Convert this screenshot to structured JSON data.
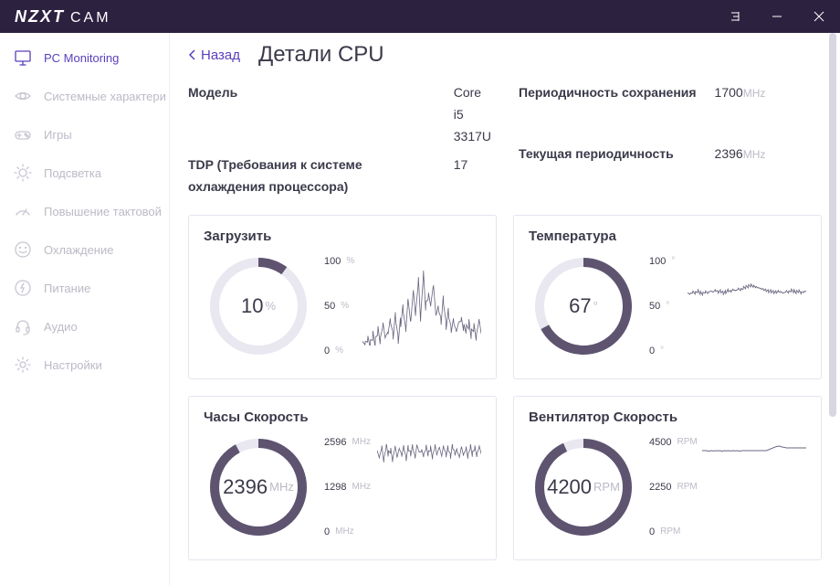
{
  "brand": {
    "main": "NZXT",
    "sub": "CAM"
  },
  "sidebar": {
    "items": [
      {
        "label": "PC Monitoring",
        "icon": "monitor",
        "active": true
      },
      {
        "label": "Системные характери",
        "icon": "eye",
        "active": false
      },
      {
        "label": "Игры",
        "icon": "gamepad",
        "active": false
      },
      {
        "label": "Подсветка",
        "icon": "sun",
        "active": false
      },
      {
        "label": "Повышение тактовой",
        "icon": "speedometer",
        "active": false
      },
      {
        "label": "Охлаждение",
        "icon": "smile",
        "active": false
      },
      {
        "label": "Питание",
        "icon": "bolt",
        "active": false
      },
      {
        "label": "Аудио",
        "icon": "headset",
        "active": false
      },
      {
        "label": "Настройки",
        "icon": "gear",
        "active": false
      }
    ]
  },
  "header": {
    "back": "Назад",
    "title": "Детали CPU"
  },
  "info": {
    "left": [
      {
        "label": "Модель",
        "value": "Core i5 3317U",
        "unit": ""
      },
      {
        "label": "TDP (Требования к системе охлаждения процессора)",
        "value": "17",
        "unit": ""
      }
    ],
    "right": [
      {
        "label": "Периодичность сохранения",
        "value": "1700",
        "unit": "MHz"
      },
      {
        "label": "Текущая периодичность",
        "value": "2396",
        "unit": "MHz"
      }
    ]
  },
  "colors": {
    "gauge_track": "#e9e7f0",
    "gauge_fill": "#5e5470",
    "spark": "#6b6580",
    "card_border": "#e6e4ee",
    "accent": "#5a3fbb"
  },
  "cards": [
    {
      "title": "Загрузить",
      "value": "10",
      "unit": "%",
      "pct": 10,
      "ticks": [
        "100",
        "50",
        "0"
      ],
      "tick_unit": "%",
      "spark": {
        "spark_off": 42,
        "ymin": 0,
        "ymax": 100,
        "series": [
          5,
          3,
          8,
          2,
          12,
          4,
          18,
          6,
          25,
          10,
          15,
          30,
          12,
          35,
          8,
          28,
          45,
          20,
          55,
          30,
          65,
          40,
          78,
          35,
          85,
          48,
          60,
          50,
          72,
          38,
          45,
          30,
          55,
          25,
          40,
          20,
          30,
          18,
          28,
          32,
          22,
          20,
          26,
          14,
          22,
          10,
          30,
          15
        ],
        "jitter": 6
      }
    },
    {
      "title": "Температура",
      "value": "67",
      "unit": "°",
      "pct": 67,
      "ticks": [
        "100",
        "50",
        "0"
      ],
      "tick_unit": "°",
      "spark": {
        "spark_off": 42,
        "ymin": 0,
        "ymax": 100,
        "series": [
          64,
          63,
          65,
          64,
          66,
          64,
          63,
          65,
          64,
          66,
          65,
          67,
          65,
          66,
          64,
          65,
          67,
          66,
          68,
          67,
          69,
          68,
          70,
          71,
          72,
          73,
          72,
          71,
          70,
          69,
          68,
          67,
          66,
          66,
          65,
          65,
          66,
          65,
          64,
          66,
          65,
          67,
          66,
          65,
          66,
          64,
          65,
          66
        ],
        "jitter": 2
      }
    },
    {
      "title": "Часы Скорость",
      "value": "2396",
      "unit": "MHz",
      "pct": 92,
      "ticks": [
        "2596",
        "1298",
        "0"
      ],
      "tick_unit": "MHz",
      "spark": {
        "spark_off": 58,
        "ymin": 0,
        "ymax": 2596,
        "series": [
          2400,
          2200,
          2500,
          2100,
          2550,
          2300,
          2400,
          2100,
          2500,
          2200,
          2450,
          2250,
          2500,
          2150,
          2480,
          2300,
          2520,
          2200,
          2560,
          2350,
          2400,
          2250,
          2500,
          2300,
          2460,
          2200,
          2530,
          2280,
          2490,
          2240,
          2510,
          2260,
          2470,
          2230,
          2540,
          2310,
          2420,
          2200,
          2500,
          2270,
          2460,
          2220,
          2520,
          2290,
          2480,
          2250,
          2510,
          2300
        ],
        "jitter": 90
      }
    },
    {
      "title": "Вентилятор Скорость",
      "value": "4200",
      "unit": "RPM",
      "pct": 93,
      "ticks": [
        "4500",
        "2250",
        "0"
      ],
      "tick_unit": "RPM",
      "spark": {
        "spark_off": 58,
        "ymin": 0,
        "ymax": 4500,
        "series": [
          4150,
          4150,
          4150,
          4120,
          4150,
          4130,
          4150,
          4140,
          4150,
          4120,
          4150,
          4140,
          4150,
          4130,
          4150,
          4140,
          4150,
          4120,
          4150,
          4150,
          4150,
          4150,
          4150,
          4150,
          4150,
          4150,
          4150,
          4150,
          4150,
          4150,
          4200,
          4250,
          4300,
          4350,
          4380,
          4400,
          4350,
          4330,
          4300,
          4300,
          4300,
          4300,
          4300,
          4300,
          4300,
          4300,
          4300,
          4300
        ],
        "jitter": 0
      }
    }
  ]
}
